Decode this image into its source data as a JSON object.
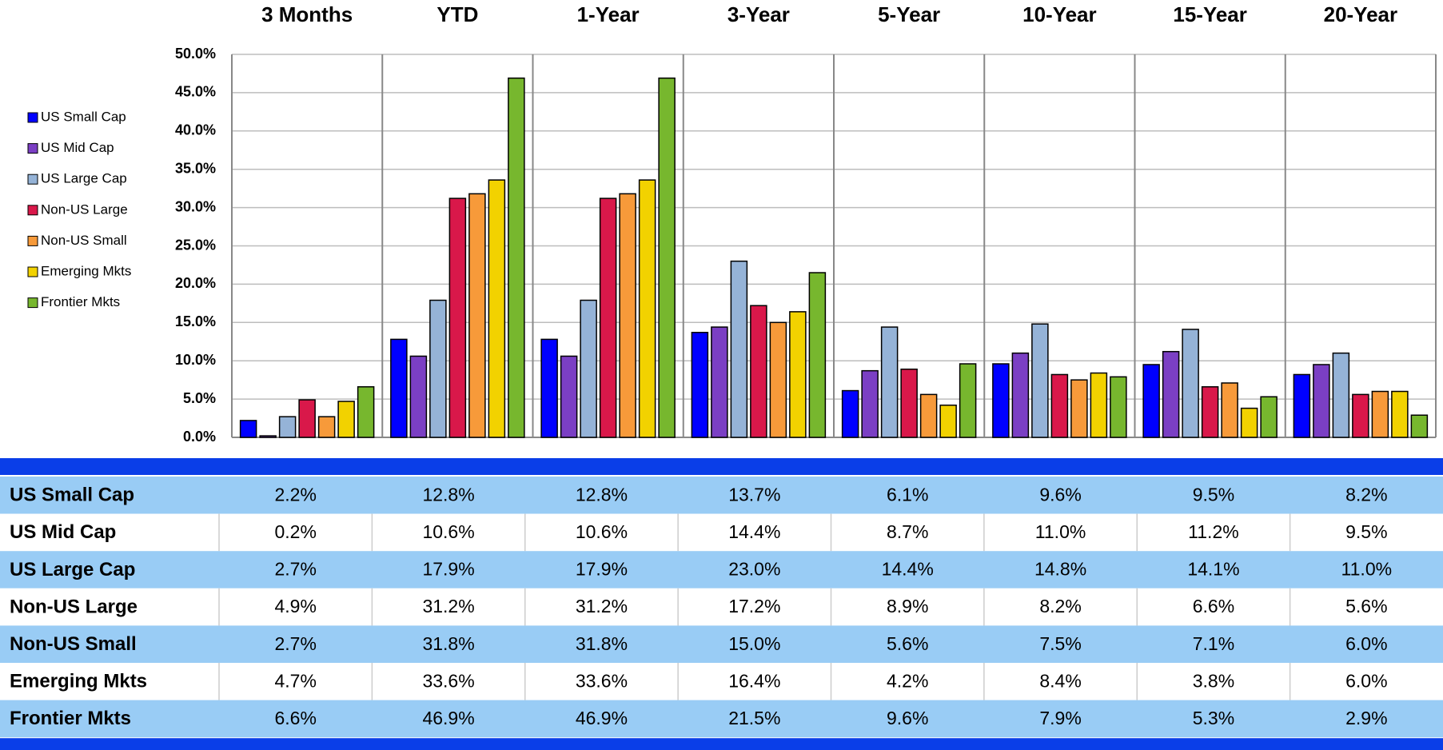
{
  "chart_data": {
    "type": "bar",
    "categories": [
      "3 Months",
      "YTD",
      "1-Year",
      "3-Year",
      "5-Year",
      "10-Year",
      "15-Year",
      "20-Year"
    ],
    "series": [
      {
        "name": "US Small Cap",
        "color": "#0000ff",
        "values": [
          2.2,
          12.8,
          12.8,
          13.7,
          6.1,
          9.6,
          9.5,
          8.2
        ],
        "value_labels": [
          "2.2%",
          "12.8%",
          "12.8%",
          "13.7%",
          "6.1%",
          "9.6%",
          "9.5%",
          "8.2%"
        ]
      },
      {
        "name": "US Mid Cap",
        "color": "#7b3fc4",
        "values": [
          0.2,
          10.6,
          10.6,
          14.4,
          8.7,
          11.0,
          11.2,
          9.5
        ],
        "value_labels": [
          "0.2%",
          "10.6%",
          "10.6%",
          "14.4%",
          "8.7%",
          "11.0%",
          "11.2%",
          "9.5%"
        ]
      },
      {
        "name": "US Large Cap",
        "color": "#95b3d7",
        "values": [
          2.7,
          17.9,
          17.9,
          23.0,
          14.4,
          14.8,
          14.1,
          11.0
        ],
        "value_labels": [
          "2.7%",
          "17.9%",
          "17.9%",
          "23.0%",
          "14.4%",
          "14.8%",
          "14.1%",
          "11.0%"
        ]
      },
      {
        "name": "Non-US Large",
        "color": "#d9184a",
        "values": [
          4.9,
          31.2,
          31.2,
          17.2,
          8.9,
          8.2,
          6.6,
          5.6
        ],
        "value_labels": [
          "4.9%",
          "31.2%",
          "31.2%",
          "17.2%",
          "8.9%",
          "8.2%",
          "6.6%",
          "5.6%"
        ]
      },
      {
        "name": "Non-US Small",
        "color": "#f79a3a",
        "values": [
          2.7,
          31.8,
          31.8,
          15.0,
          5.6,
          7.5,
          7.1,
          6.0
        ],
        "value_labels": [
          "2.7%",
          "31.8%",
          "31.8%",
          "15.0%",
          "5.6%",
          "7.5%",
          "7.1%",
          "6.0%"
        ]
      },
      {
        "name": "Emerging Mkts",
        "color": "#f2d200",
        "values": [
          4.7,
          33.6,
          33.6,
          16.4,
          4.2,
          8.4,
          3.8,
          6.0
        ],
        "value_labels": [
          "4.7%",
          "33.6%",
          "33.6%",
          "16.4%",
          "4.2%",
          "8.4%",
          "3.8%",
          "6.0%"
        ]
      },
      {
        "name": "Frontier Mkts",
        "color": "#77b72e",
        "values": [
          6.6,
          46.9,
          46.9,
          21.5,
          9.6,
          7.9,
          5.3,
          2.9
        ],
        "value_labels": [
          "6.6%",
          "46.9%",
          "46.9%",
          "21.5%",
          "9.6%",
          "7.9%",
          "5.3%",
          "2.9%"
        ]
      }
    ],
    "ylim": [
      0,
      50
    ],
    "yticks": [
      {
        "value": 0,
        "label": "0.0%"
      },
      {
        "value": 5,
        "label": "5.0%"
      },
      {
        "value": 10,
        "label": "10.0%"
      },
      {
        "value": 15,
        "label": "15.0%"
      },
      {
        "value": 20,
        "label": "20.0%"
      },
      {
        "value": 25,
        "label": "25.0%"
      },
      {
        "value": 30,
        "label": "30.0%"
      },
      {
        "value": 35,
        "label": "35.0%"
      },
      {
        "value": 40,
        "label": "40.0%"
      },
      {
        "value": 45,
        "label": "45.0%"
      },
      {
        "value": 50,
        "label": "50.0%"
      }
    ],
    "grid": true,
    "legend": "left"
  }
}
